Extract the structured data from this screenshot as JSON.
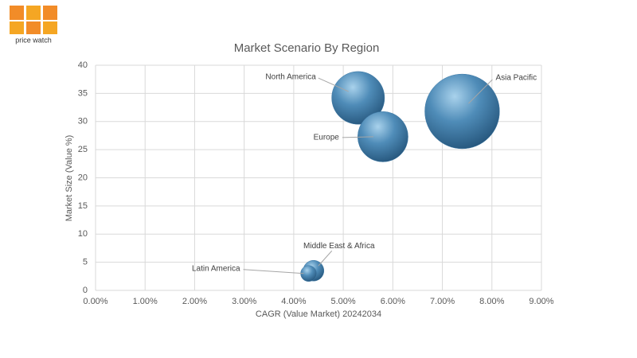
{
  "logo_text": "price watch",
  "chart_data": {
    "type": "bubble",
    "title": "Market Scenario By Region",
    "x_label": "CAGR (Value Market) 20242034",
    "y_label": "Market Size (Value %)",
    "color": "#3f7aa6",
    "grid": true,
    "xlim": [
      0,
      9
    ],
    "ylim": [
      0,
      40
    ],
    "xticks": [
      {
        "value": 0,
        "label": "0.00%"
      },
      {
        "value": 1,
        "label": "1.00%"
      },
      {
        "value": 2,
        "label": "2.00%"
      },
      {
        "value": 3,
        "label": "3.00%"
      },
      {
        "value": 4,
        "label": "4.00%"
      },
      {
        "value": 5,
        "label": "5.00%"
      },
      {
        "value": 6,
        "label": "6.00%"
      },
      {
        "value": 7,
        "label": "7.00%"
      },
      {
        "value": 8,
        "label": "8.00%"
      },
      {
        "value": 9,
        "label": "9.00%"
      }
    ],
    "yticks": [
      0,
      5,
      10,
      15,
      20,
      25,
      30,
      35,
      40
    ],
    "points": [
      {
        "label": "North America",
        "x": 5.3,
        "y": 34.2,
        "size": 1100
      },
      {
        "label": "Asia Pacific",
        "x": 7.4,
        "y": 31.8,
        "size": 2200
      },
      {
        "label": "Europe",
        "x": 5.8,
        "y": 27.3,
        "size": 1000
      },
      {
        "label": "Middle East & Africa",
        "x": 4.4,
        "y": 3.5,
        "size": 170
      },
      {
        "label": "Latin America",
        "x": 4.3,
        "y": 3.0,
        "size": 100
      }
    ]
  }
}
